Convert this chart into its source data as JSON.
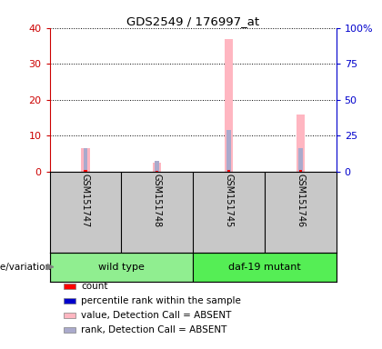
{
  "title": "GDS2549 / 176997_at",
  "samples": [
    "GSM151747",
    "GSM151748",
    "GSM151745",
    "GSM151746"
  ],
  "pink_values": [
    6.5,
    2.5,
    37.0,
    16.0
  ],
  "blue_pct": [
    16.0,
    7.5,
    29.0,
    16.0
  ],
  "red_counts": [
    0.5,
    0.3,
    0.5,
    0.5
  ],
  "ylim_left": [
    0,
    40
  ],
  "ylim_right": [
    0,
    100
  ],
  "yticks_left": [
    0,
    10,
    20,
    30,
    40
  ],
  "yticks_right": [
    0,
    25,
    50,
    75,
    100
  ],
  "color_red": "#FF0000",
  "color_blue": "#0000FF",
  "color_pink": "#FFB6C1",
  "color_lavender": "#AAAACC",
  "color_gray_bg": "#C8C8C8",
  "color_wildtype": "#90EE90",
  "color_mutant": "#55EE55",
  "legend_items": [
    {
      "label": "count",
      "color": "#FF0000"
    },
    {
      "label": "percentile rank within the sample",
      "color": "#0000CC"
    },
    {
      "label": "value, Detection Call = ABSENT",
      "color": "#FFB6C1"
    },
    {
      "label": "rank, Detection Call = ABSENT",
      "color": "#AAAACC"
    }
  ],
  "genotype_label": "genotype/variation",
  "group_info": [
    {
      "label": "wild type",
      "start": 0,
      "end": 1,
      "color": "#90EE90"
    },
    {
      "label": "daf-19 mutant",
      "start": 2,
      "end": 3,
      "color": "#55EE55"
    }
  ],
  "pink_bar_width": 0.12,
  "blue_bar_width": 0.06,
  "red_bar_width": 0.04,
  "plot_bg": "#FFFFFF",
  "left_axis_color": "#CC0000",
  "right_axis_color": "#0000CC"
}
